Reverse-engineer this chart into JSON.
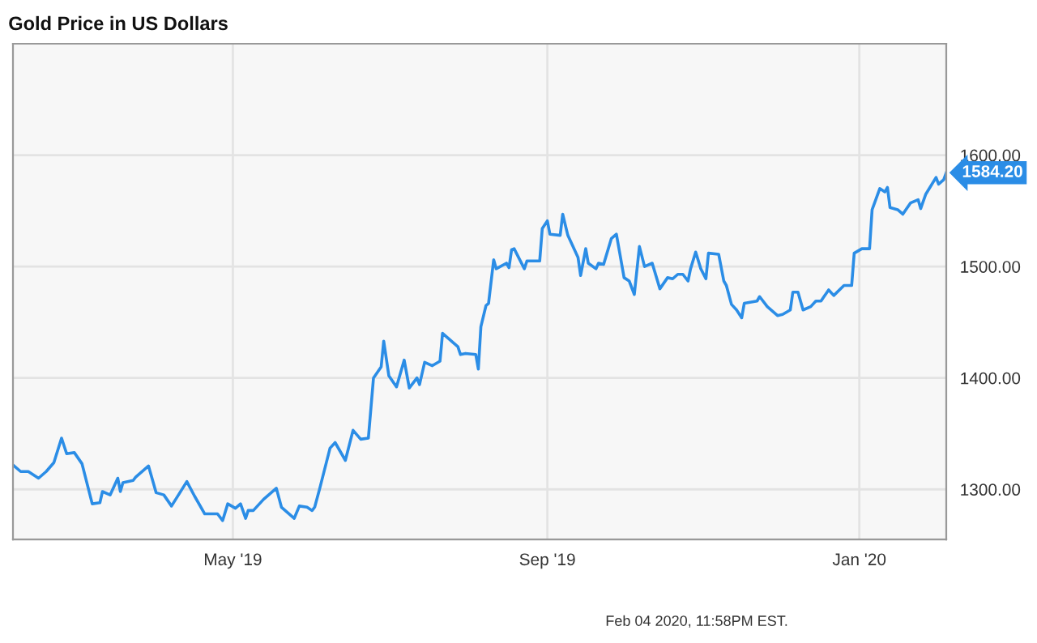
{
  "chart_data": {
    "type": "line",
    "title": "Gold Price in US Dollars",
    "x": [
      "2019-02-04",
      "2019-02-07",
      "2019-02-10",
      "2019-02-14",
      "2019-02-17",
      "2019-02-20",
      "2019-02-23",
      "2019-02-25",
      "2019-02-28",
      "2019-03-03",
      "2019-03-07",
      "2019-03-10",
      "2019-03-11",
      "2019-03-14",
      "2019-03-17",
      "2019-03-18",
      "2019-03-19",
      "2019-03-23",
      "2019-03-24",
      "2019-03-29",
      "2019-04-01",
      "2019-04-04",
      "2019-04-07",
      "2019-04-13",
      "2019-04-16",
      "2019-04-20",
      "2019-04-25",
      "2019-04-27",
      "2019-04-29",
      "2019-05-02",
      "2019-05-04",
      "2019-05-06",
      "2019-05-07",
      "2019-05-09",
      "2019-05-13",
      "2019-05-18",
      "2019-05-20",
      "2019-05-25",
      "2019-05-27",
      "2019-05-30",
      "2019-06-01",
      "2019-06-02",
      "2019-06-04",
      "2019-06-08",
      "2019-06-10",
      "2019-06-14",
      "2019-06-17",
      "2019-06-20",
      "2019-06-23",
      "2019-06-25",
      "2019-06-28",
      "2019-06-29",
      "2019-07-01",
      "2019-07-04",
      "2019-07-07",
      "2019-07-09",
      "2019-07-12",
      "2019-07-13",
      "2019-07-15",
      "2019-07-18",
      "2019-07-21",
      "2019-07-22",
      "2019-07-28",
      "2019-07-29",
      "2019-07-31",
      "2019-08-04",
      "2019-08-05",
      "2019-08-06",
      "2019-08-08",
      "2019-08-09",
      "2019-08-11",
      "2019-08-12",
      "2019-08-16",
      "2019-08-17",
      "2019-08-18",
      "2019-08-19",
      "2019-08-23",
      "2019-08-24",
      "2019-08-29",
      "2019-08-30",
      "2019-09-01",
      "2019-09-02",
      "2019-09-06",
      "2019-09-07",
      "2019-09-09",
      "2019-09-13",
      "2019-09-14",
      "2019-09-16",
      "2019-09-17",
      "2019-09-20",
      "2019-09-21",
      "2019-09-23",
      "2019-09-26",
      "2019-09-28",
      "2019-10-01",
      "2019-10-03",
      "2019-10-05",
      "2019-10-07",
      "2019-10-09",
      "2019-10-12",
      "2019-10-15",
      "2019-10-18",
      "2019-10-20",
      "2019-10-22",
      "2019-10-24",
      "2019-10-26",
      "2019-10-27",
      "2019-10-29",
      "2019-10-31",
      "2019-11-02",
      "2019-11-03",
      "2019-11-07",
      "2019-11-09",
      "2019-11-10",
      "2019-11-12",
      "2019-11-14",
      "2019-11-16",
      "2019-11-17",
      "2019-11-22",
      "2019-11-23",
      "2019-11-26",
      "2019-11-30",
      "2019-12-02",
      "2019-12-05",
      "2019-12-06",
      "2019-12-08",
      "2019-12-10",
      "2019-12-13",
      "2019-12-15",
      "2019-12-17",
      "2019-12-20",
      "2019-12-22",
      "2019-12-26",
      "2019-12-29",
      "2019-12-30",
      "2020-01-02",
      "2020-01-05",
      "2020-01-06",
      "2020-01-09",
      "2020-01-11",
      "2020-01-12",
      "2020-01-13",
      "2020-01-16",
      "2020-01-18",
      "2020-01-21",
      "2020-01-24",
      "2020-01-25",
      "2020-01-27",
      "2020-01-31",
      "2020-02-01",
      "2020-02-03",
      "2020-02-04"
    ],
    "series": [
      {
        "color": "#2b8de6",
        "values": [
          1322,
          1316,
          1316,
          1310,
          1316,
          1324,
          1346,
          1332,
          1333,
          1323,
          1287,
          1288,
          1298,
          1295,
          1310,
          1298,
          1306,
          1308,
          1311,
          1321,
          1297,
          1295,
          1285,
          1307,
          1294,
          1278,
          1278,
          1272,
          1287,
          1283,
          1287,
          1274,
          1281,
          1281,
          1291,
          1301,
          1284,
          1274,
          1285,
          1284,
          1281,
          1284,
          1301,
          1337,
          1342,
          1326,
          1353,
          1345,
          1346,
          1400,
          1410,
          1433,
          1402,
          1392,
          1416,
          1391,
          1400,
          1394,
          1414,
          1411,
          1415,
          1440,
          1428,
          1421,
          1422,
          1421,
          1408,
          1446,
          1465,
          1467,
          1506,
          1498,
          1503,
          1499,
          1515,
          1516,
          1498,
          1505,
          1505,
          1534,
          1541,
          1529,
          1528,
          1547,
          1528,
          1508,
          1492,
          1516,
          1503,
          1498,
          1503,
          1502,
          1525,
          1529,
          1490,
          1487,
          1475,
          1518,
          1500,
          1503,
          1480,
          1490,
          1489,
          1493,
          1493,
          1487,
          1498,
          1513,
          1498,
          1489,
          1512,
          1511,
          1487,
          1483,
          1466,
          1461,
          1454,
          1467,
          1469,
          1473,
          1464,
          1456,
          1457,
          1461,
          1477,
          1477,
          1461,
          1464,
          1469,
          1469,
          1479,
          1474,
          1483,
          1483,
          1512,
          1516,
          1516,
          1551,
          1570,
          1567,
          1571,
          1553,
          1551,
          1547,
          1557,
          1560,
          1552,
          1565,
          1580,
          1574,
          1578,
          1584.2
        ]
      }
    ],
    "xlim": [
      "2019-02-04",
      "2020-02-04"
    ],
    "xticks": [
      {
        "value": "2019-05-01",
        "label": "May '19"
      },
      {
        "value": "2019-09-01",
        "label": "Sep '19"
      },
      {
        "value": "2020-01-01",
        "label": "Jan '20"
      }
    ],
    "ylim": [
      1255,
      1700
    ],
    "yticks": [
      {
        "value": 1300,
        "label": "1300.00"
      },
      {
        "value": 1400,
        "label": "1400.00"
      },
      {
        "value": 1500,
        "label": "1500.00"
      },
      {
        "value": 1600,
        "label": "1600.00"
      }
    ],
    "grid": true,
    "annotations": [
      {
        "text": "1584.20",
        "x": "2020-02-04",
        "y": 1584.2
      },
      "Feb 04 2020, 11:58PM EST."
    ]
  }
}
